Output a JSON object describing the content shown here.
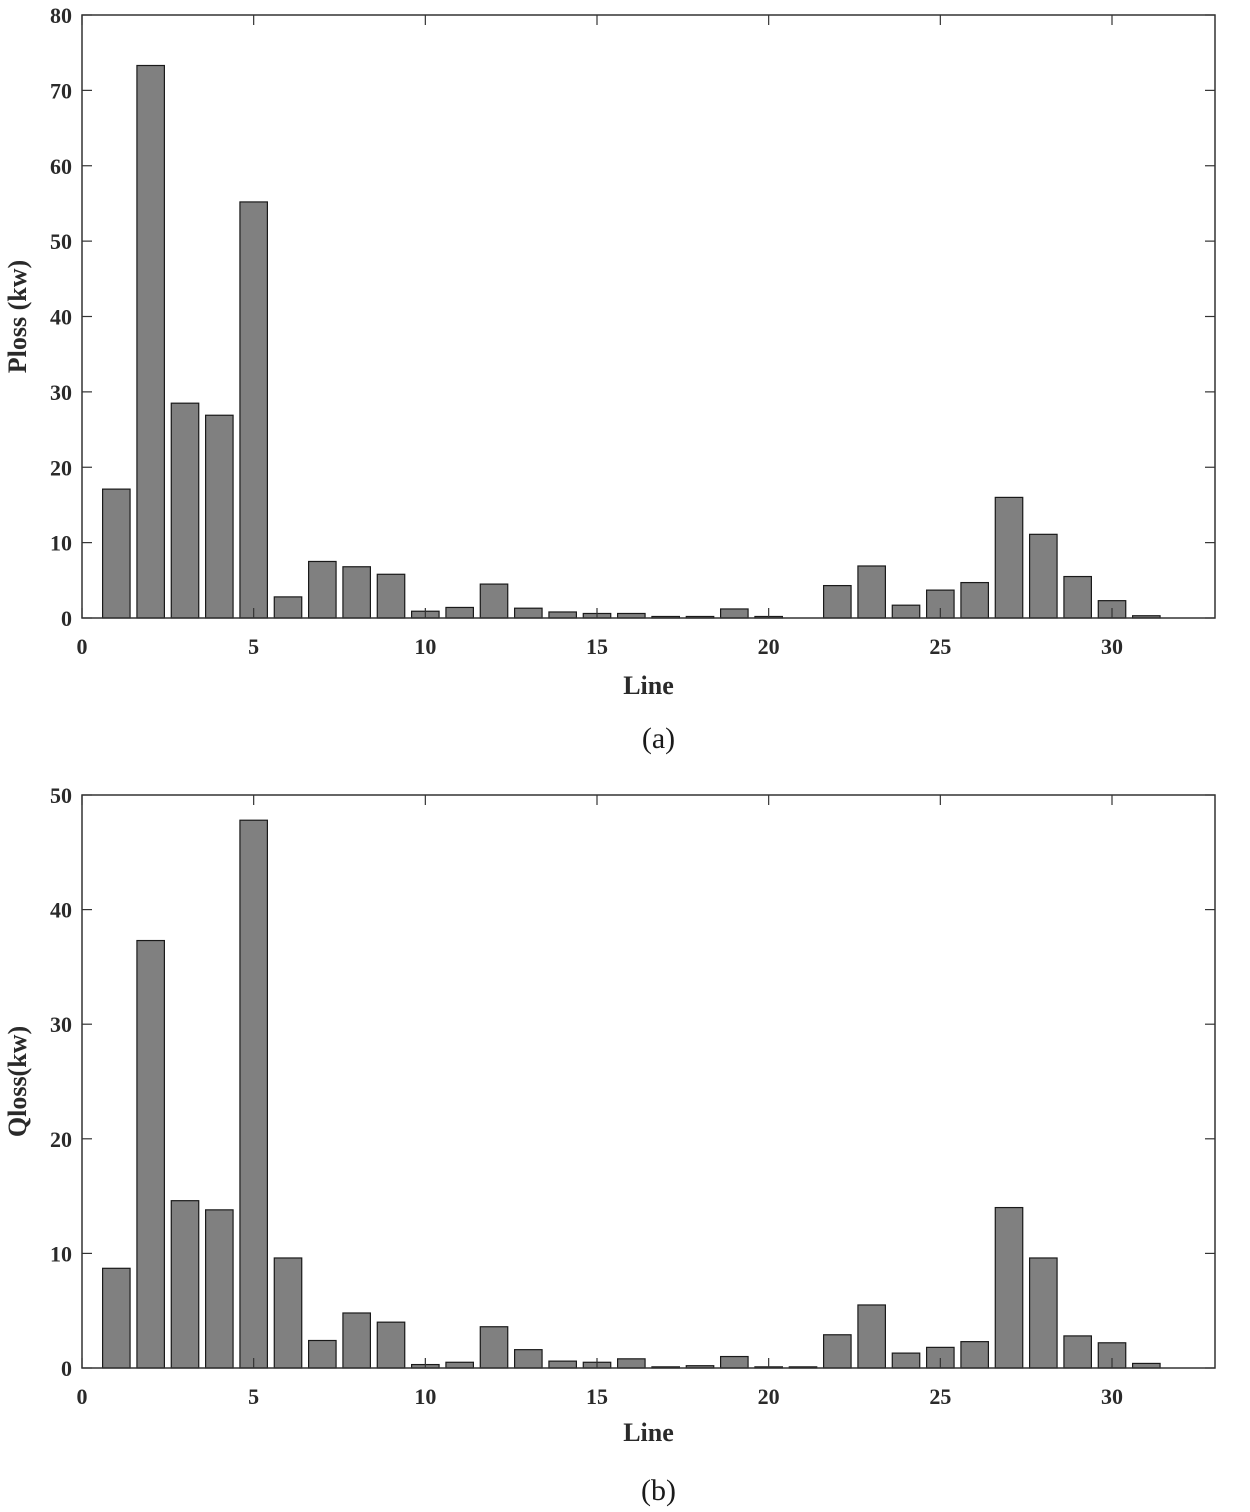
{
  "chart_data": [
    {
      "type": "bar",
      "title": "",
      "caption": "(a)",
      "xlabel": "Line",
      "ylabel": "Ploss (kw)",
      "xlim": [
        0,
        33
      ],
      "ylim": [
        0,
        80
      ],
      "xticks": [
        0,
        5,
        10,
        15,
        20,
        25,
        30
      ],
      "yticks": [
        0,
        10,
        20,
        30,
        40,
        50,
        60,
        70,
        80
      ],
      "grid": false,
      "x": [
        1,
        2,
        3,
        4,
        5,
        6,
        7,
        8,
        9,
        10,
        11,
        12,
        13,
        14,
        15,
        16,
        17,
        18,
        19,
        20,
        21,
        22,
        23,
        24,
        25,
        26,
        27,
        28,
        29,
        30,
        31,
        32
      ],
      "values": [
        17.1,
        73.3,
        28.5,
        26.9,
        55.2,
        2.8,
        7.5,
        6.8,
        5.8,
        0.9,
        1.4,
        4.5,
        1.3,
        0.8,
        0.6,
        0.6,
        0.2,
        0.2,
        1.2,
        0.2,
        0,
        4.3,
        6.9,
        1.7,
        3.7,
        4.7,
        16.0,
        11.1,
        5.5,
        2.3,
        0.3,
        0
      ]
    },
    {
      "type": "bar",
      "title": "",
      "caption": "(b)",
      "xlabel": "Line",
      "ylabel": "Qloss(kw)",
      "xlim": [
        0,
        33
      ],
      "ylim": [
        0,
        50
      ],
      "xticks": [
        0,
        5,
        10,
        15,
        20,
        25,
        30
      ],
      "yticks": [
        0,
        10,
        20,
        30,
        40,
        50
      ],
      "grid": false,
      "x": [
        1,
        2,
        3,
        4,
        5,
        6,
        7,
        8,
        9,
        10,
        11,
        12,
        13,
        14,
        15,
        16,
        17,
        18,
        19,
        20,
        21,
        22,
        23,
        24,
        25,
        26,
        27,
        28,
        29,
        30,
        31,
        32
      ],
      "values": [
        8.7,
        37.3,
        14.6,
        13.8,
        47.8,
        9.6,
        2.4,
        4.8,
        4.0,
        0.3,
        0.5,
        3.6,
        1.6,
        0.6,
        0.5,
        0.8,
        0.1,
        0.2,
        1.0,
        0.1,
        0.1,
        2.9,
        5.5,
        1.3,
        1.8,
        2.3,
        14.0,
        9.6,
        2.8,
        2.2,
        0.4,
        0
      ]
    }
  ]
}
